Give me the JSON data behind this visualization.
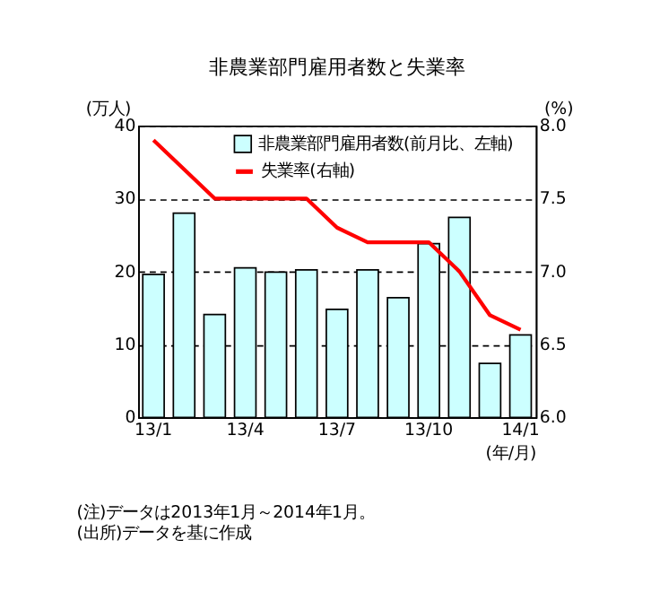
{
  "chart_data": {
    "type": "bar",
    "title": "非農業部門雇用者数と失業率",
    "xlabel": "(年/月)",
    "ylabel": "(万人)",
    "y2label": "(%)",
    "categories": [
      "13/1",
      null,
      null,
      "13/4",
      null,
      null,
      "13/7",
      null,
      null,
      "13/10",
      null,
      null,
      "14/1"
    ],
    "series": [
      {
        "name": "非農業部門雇用者数(前月比、左軸)",
        "color": "#ccffff",
        "values": [
          19.6,
          28.0,
          14.1,
          20.5,
          19.9,
          20.2,
          14.8,
          20.2,
          16.4,
          23.8,
          27.4,
          7.4,
          11.3
        ]
      },
      {
        "name": "失業率(右軸)",
        "type": "line",
        "axis": "y2",
        "color": "#ff0000",
        "values": [
          7.9,
          7.7,
          7.5,
          7.5,
          7.5,
          7.5,
          7.3,
          7.2,
          7.2,
          7.2,
          7.0,
          6.7,
          6.6
        ]
      }
    ],
    "ylim": [
      0,
      40
    ],
    "yticks": [
      0,
      10,
      20,
      30,
      40
    ],
    "y2lim": [
      6.0,
      8.0
    ],
    "y2ticks": [
      {
        "value": 6.0,
        "label": "6.0"
      },
      {
        "value": 6.5,
        "label": "6.5"
      },
      {
        "value": 7.0,
        "label": "7.0"
      },
      {
        "value": 7.5,
        "label": "7.5"
      },
      {
        "value": 8.0,
        "label": "8.0"
      }
    ],
    "grid": "y",
    "legend": "top right",
    "line_style": "solid",
    "marker": "none",
    "annotations": [
      "(注)データは2013年1月～2014年1月。",
      "(出所)データを基に作成"
    ]
  }
}
